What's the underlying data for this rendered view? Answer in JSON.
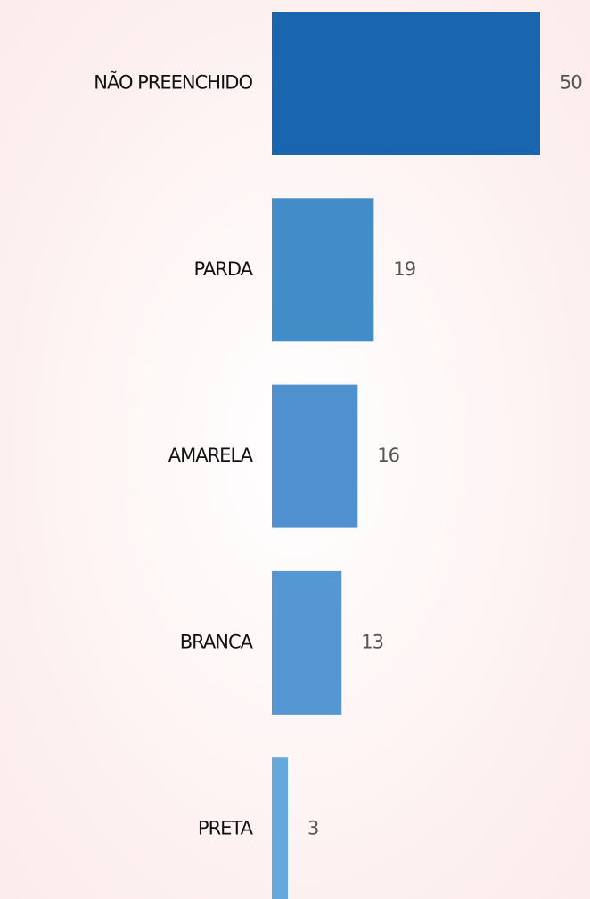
{
  "chart_data": {
    "type": "bar",
    "orientation": "horizontal",
    "categories": [
      "NÃO PREENCHIDO",
      "PARDA",
      "AMARELA",
      "BRANCA",
      "PRETA"
    ],
    "values": [
      50,
      19,
      16,
      13,
      3
    ],
    "colors": [
      "#1a65b0",
      "#428dc8",
      "#4f91cf",
      "#5597d2",
      "#66a8dc"
    ]
  }
}
